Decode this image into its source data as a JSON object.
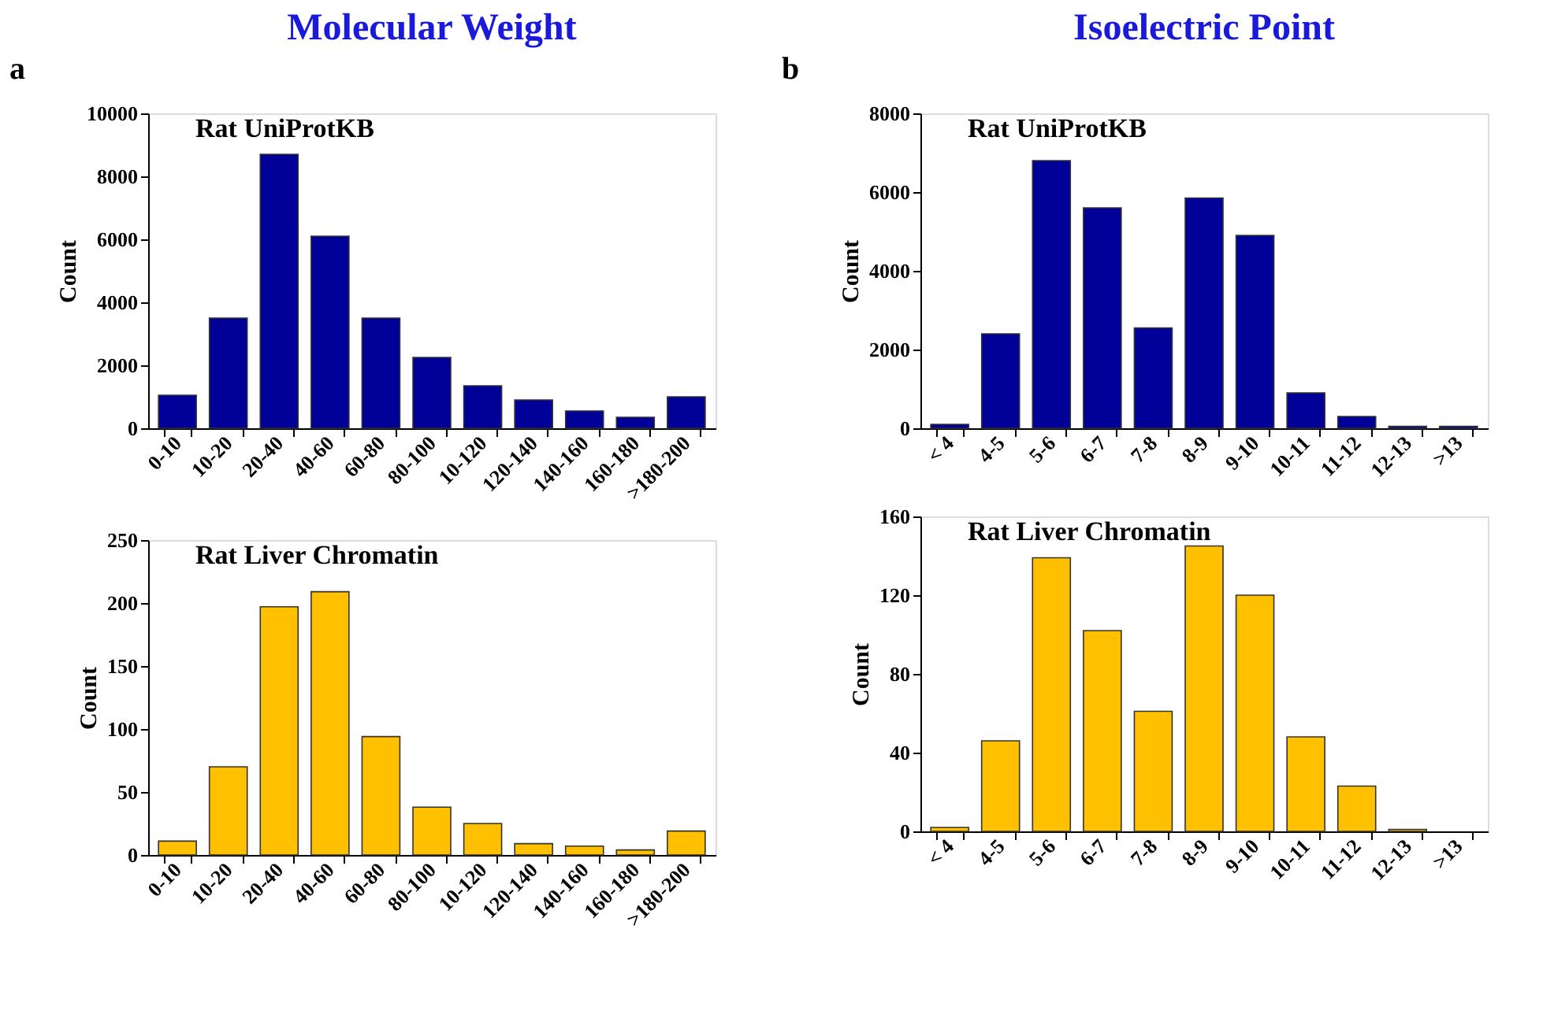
{
  "chart_data": [
    {
      "type": "bar",
      "title": "Molecular Weight",
      "subtitle": "Rat UniProtKB",
      "annotations": [
        "a"
      ],
      "ylabel": "Count",
      "categories": [
        "0-10",
        "10-20",
        "20-40",
        "40-60",
        "60-80",
        "80-100",
        "10-120",
        "120-140",
        "140-160",
        "160-180",
        ">180-200"
      ],
      "values": [
        1050,
        3500,
        8700,
        6100,
        3500,
        2250,
        1350,
        900,
        550,
        350,
        1000
      ],
      "color": "#000099",
      "ylim": [
        0,
        10000
      ],
      "yticks": [
        0,
        2000,
        4000,
        6000,
        8000,
        10000
      ]
    },
    {
      "type": "bar",
      "title": "Isoelectric Point",
      "subtitle": "Rat UniProtKB",
      "annotations": [
        "b"
      ],
      "ylabel": "Count",
      "categories": [
        "< 4",
        "4-5",
        "5-6",
        "6-7",
        "7-8",
        "8-9",
        "9-10",
        "10-11",
        "11-12",
        "12-13",
        ">13"
      ],
      "values": [
        100,
        2400,
        6800,
        5600,
        2550,
        5850,
        4900,
        900,
        300,
        50,
        50
      ],
      "color": "#000099",
      "ylim": [
        0,
        8000
      ],
      "yticks": [
        0,
        2000,
        4000,
        6000,
        8000
      ]
    },
    {
      "type": "bar",
      "subtitle": "Rat Liver Chromatin",
      "ylabel": "Count",
      "categories": [
        "0-10",
        "10-20",
        "20-40",
        "40-60",
        "60-80",
        "80-100",
        "10-120",
        "120-140",
        "140-160",
        "160-180",
        ">180-200"
      ],
      "values": [
        11,
        70,
        197,
        209,
        94,
        38,
        25,
        9,
        7,
        4,
        19
      ],
      "color": "#ffc000",
      "ylim": [
        0,
        250
      ],
      "yticks": [
        0,
        50,
        100,
        150,
        200,
        250
      ]
    },
    {
      "type": "bar",
      "subtitle": "Rat Liver Chromatin",
      "ylabel": "Count",
      "categories": [
        "< 4",
        "4-5",
        "5-6",
        "6-7",
        "7-8",
        "8-9",
        "9-10",
        "10-11",
        "11-12",
        "12-13",
        ">13"
      ],
      "values": [
        2,
        46,
        139,
        102,
        61,
        145,
        120,
        48,
        23,
        1,
        0
      ],
      "color": "#ffc000",
      "ylim": [
        0,
        160
      ],
      "yticks": [
        0,
        40,
        80,
        120,
        160
      ]
    }
  ]
}
